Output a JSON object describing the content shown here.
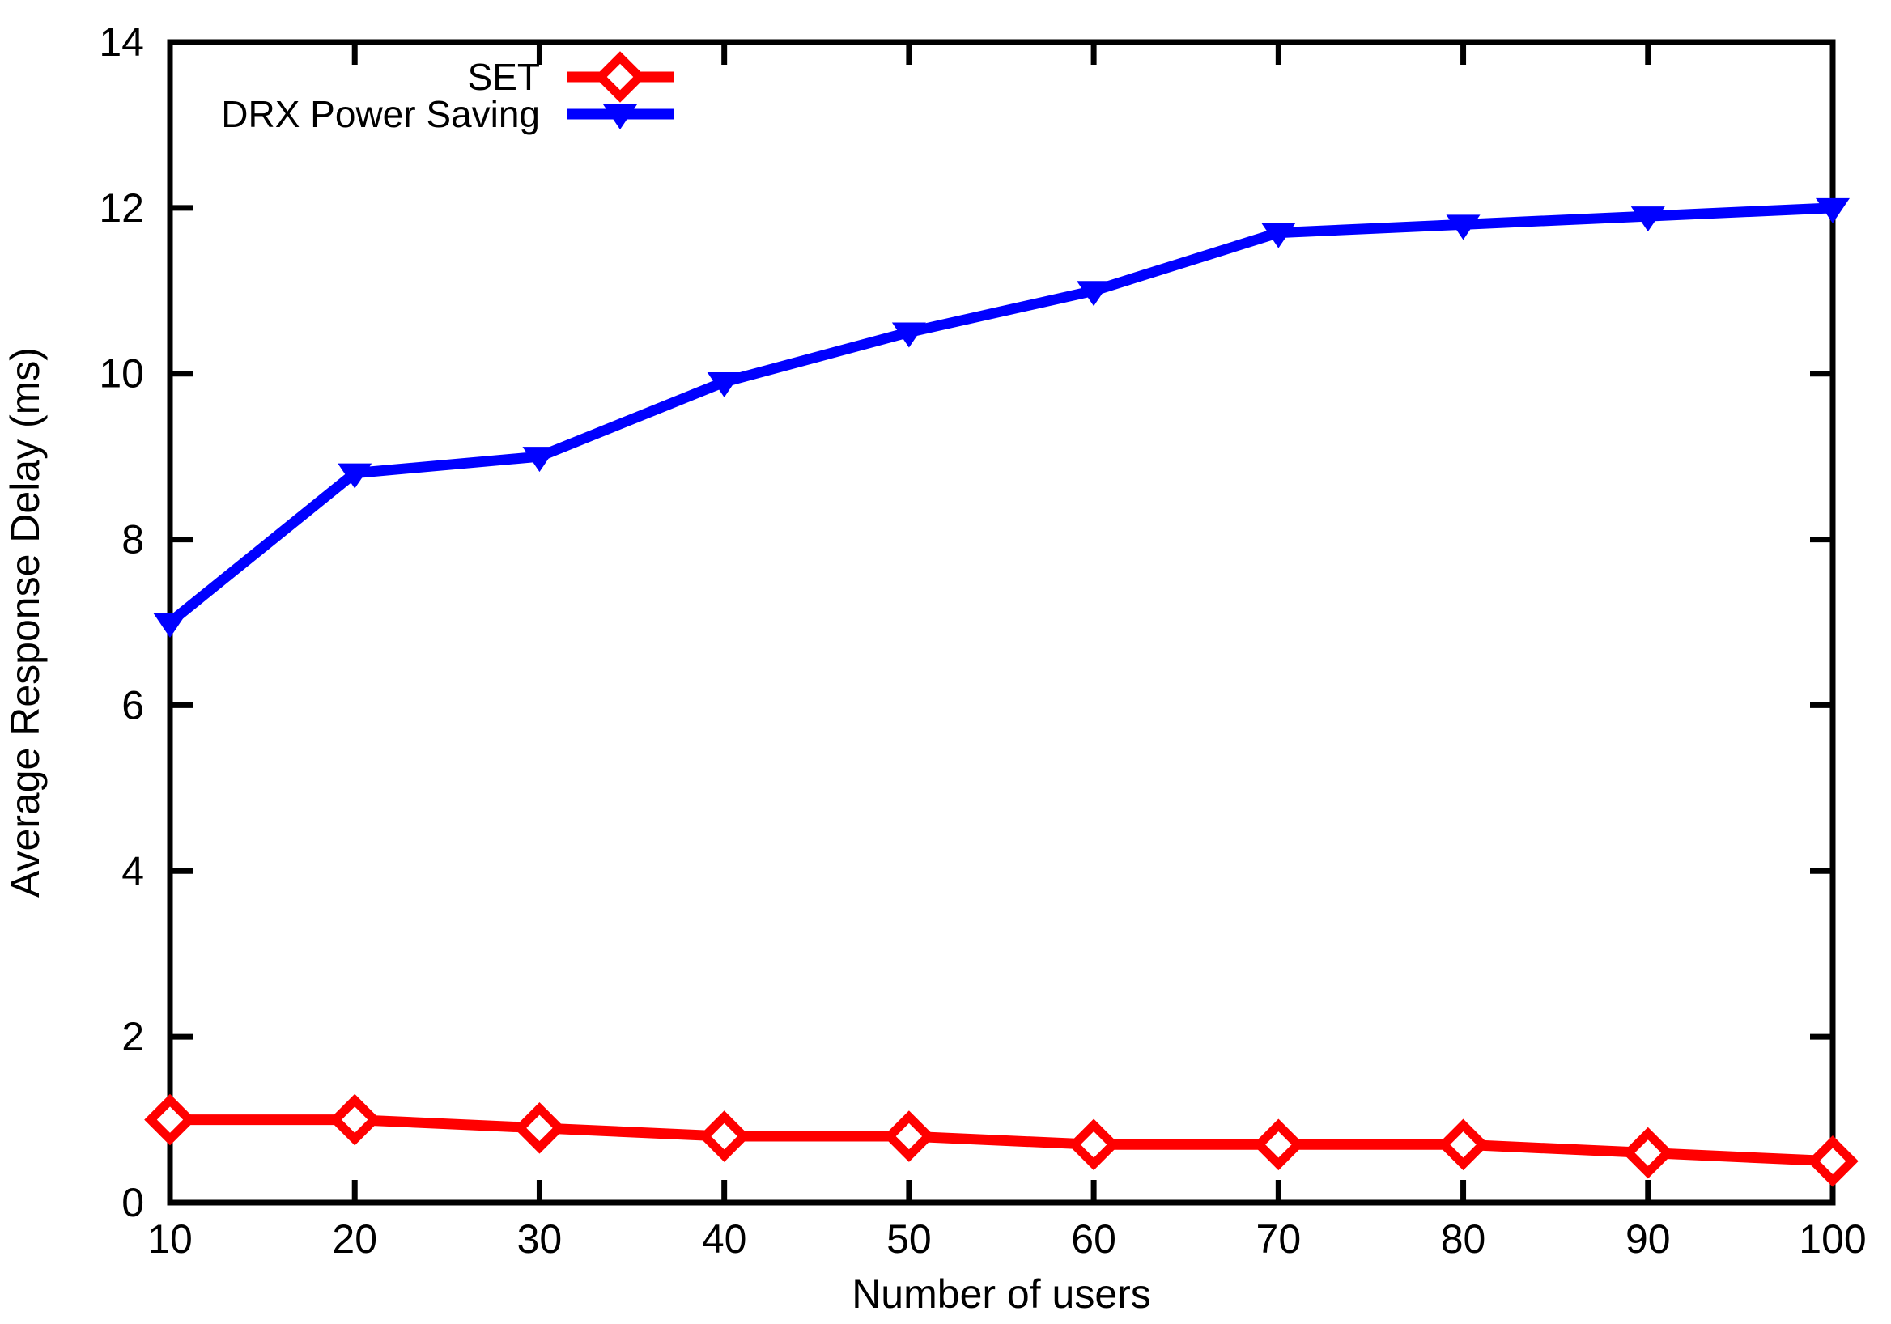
{
  "chart_data": {
    "type": "line",
    "title": "",
    "xlabel": "Number of users",
    "ylabel": "Average Response Delay (ms)",
    "x": [
      10,
      20,
      30,
      40,
      50,
      60,
      70,
      80,
      90,
      100
    ],
    "xlim": [
      10,
      100
    ],
    "ylim": [
      0,
      14
    ],
    "x_ticks": [
      "10",
      "20",
      "30",
      "40",
      "50",
      "60",
      "70",
      "80",
      "90",
      "100"
    ],
    "y_ticks": [
      "0",
      "2",
      "4",
      "6",
      "8",
      "10",
      "12",
      "14"
    ],
    "grid": false,
    "legend_position": "top-inside-left",
    "series": [
      {
        "name": "SET",
        "color": "#ff0000",
        "marker": "open-diamond",
        "values": [
          1.0,
          1.0,
          0.9,
          0.8,
          0.8,
          0.7,
          0.7,
          0.7,
          0.6,
          0.5
        ]
      },
      {
        "name": "DRX Power Saving",
        "color": "#0000ff",
        "marker": "filled-triangle-down",
        "values": [
          7.0,
          8.8,
          9.0,
          9.9,
          10.5,
          11.0,
          11.7,
          11.8,
          11.9,
          12.0
        ]
      }
    ]
  },
  "colors": {
    "axis": "#000000",
    "background": "#ffffff"
  }
}
